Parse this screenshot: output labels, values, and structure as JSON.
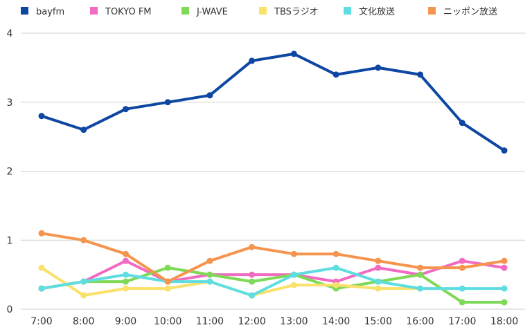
{
  "chart_data": {
    "type": "line",
    "title": "",
    "xlabel": "",
    "ylabel": "",
    "ylim": [
      0,
      4
    ],
    "yticks": [
      "0",
      "1",
      "2",
      "3",
      "4"
    ],
    "grid": true,
    "legend_position": "top",
    "categories": [
      "7:00",
      "8:00",
      "9:00",
      "10:00",
      "11:00",
      "12:00",
      "13:00",
      "14:00",
      "15:00",
      "16:00",
      "17:00",
      "18:00"
    ],
    "series": [
      {
        "name": "bayfm",
        "color": "#0d47a1",
        "values": [
          2.8,
          2.6,
          2.9,
          3.0,
          3.1,
          3.6,
          3.7,
          3.4,
          3.5,
          3.4,
          2.7,
          2.3
        ]
      },
      {
        "name": "TOKYO FM",
        "color": "#f06bc1",
        "values": [
          0.3,
          0.4,
          0.7,
          0.4,
          0.5,
          0.5,
          0.5,
          0.4,
          0.6,
          0.5,
          0.7,
          0.6
        ]
      },
      {
        "name": "J-WAVE",
        "color": "#7ed957",
        "values": [
          0.3,
          0.4,
          0.4,
          0.6,
          0.5,
          0.4,
          0.5,
          0.3,
          0.4,
          0.5,
          0.1,
          0.1
        ]
      },
      {
        "name": "TBSラジオ",
        "color": "#f9e16a",
        "values": [
          0.6,
          0.2,
          0.3,
          0.3,
          0.4,
          0.2,
          0.35,
          0.35,
          0.3,
          0.3,
          null,
          null
        ]
      },
      {
        "name": "文化放送",
        "color": "#5fdde0",
        "values": [
          0.3,
          0.4,
          0.5,
          0.4,
          0.4,
          0.2,
          0.5,
          0.6,
          0.4,
          0.3,
          0.3,
          0.3
        ]
      },
      {
        "name": "ニッポン放送",
        "color": "#f5944e",
        "values": [
          1.1,
          1.0,
          0.8,
          0.4,
          0.7,
          0.9,
          0.8,
          0.8,
          0.7,
          0.6,
          0.6,
          0.7
        ]
      }
    ]
  }
}
